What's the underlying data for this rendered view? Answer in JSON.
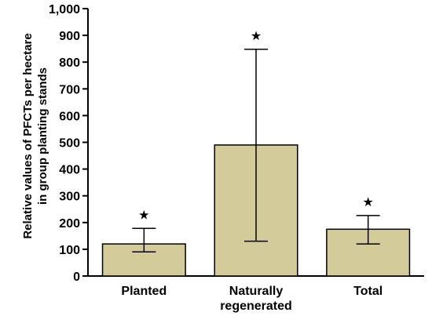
{
  "chart_data": {
    "type": "bar",
    "categories": [
      {
        "lines": [
          "Planted"
        ]
      },
      {
        "lines": [
          "Naturally",
          "regenerated"
        ]
      },
      {
        "lines": [
          "Total"
        ]
      }
    ],
    "values": [
      120,
      490,
      175
    ],
    "error_low": [
      90,
      130,
      120
    ],
    "error_high": [
      178,
      848,
      226
    ],
    "markers": [
      "★",
      "★",
      "★"
    ],
    "ylabel_lines": [
      "Relative values of PFCTs per hectare",
      "in group planting stands"
    ],
    "xlabel": "",
    "title": "",
    "ylim": [
      0,
      1000
    ],
    "yticks": [
      0,
      100,
      200,
      300,
      400,
      500,
      600,
      700,
      800,
      900,
      1000
    ],
    "ytick_labels": [
      "0",
      "100",
      "200",
      "300",
      "400",
      "500",
      "600",
      "700",
      "800",
      "900",
      "1,000"
    ],
    "grid": false,
    "bar_color": "#d3cc9a",
    "bar_edge_color": "#000000"
  }
}
